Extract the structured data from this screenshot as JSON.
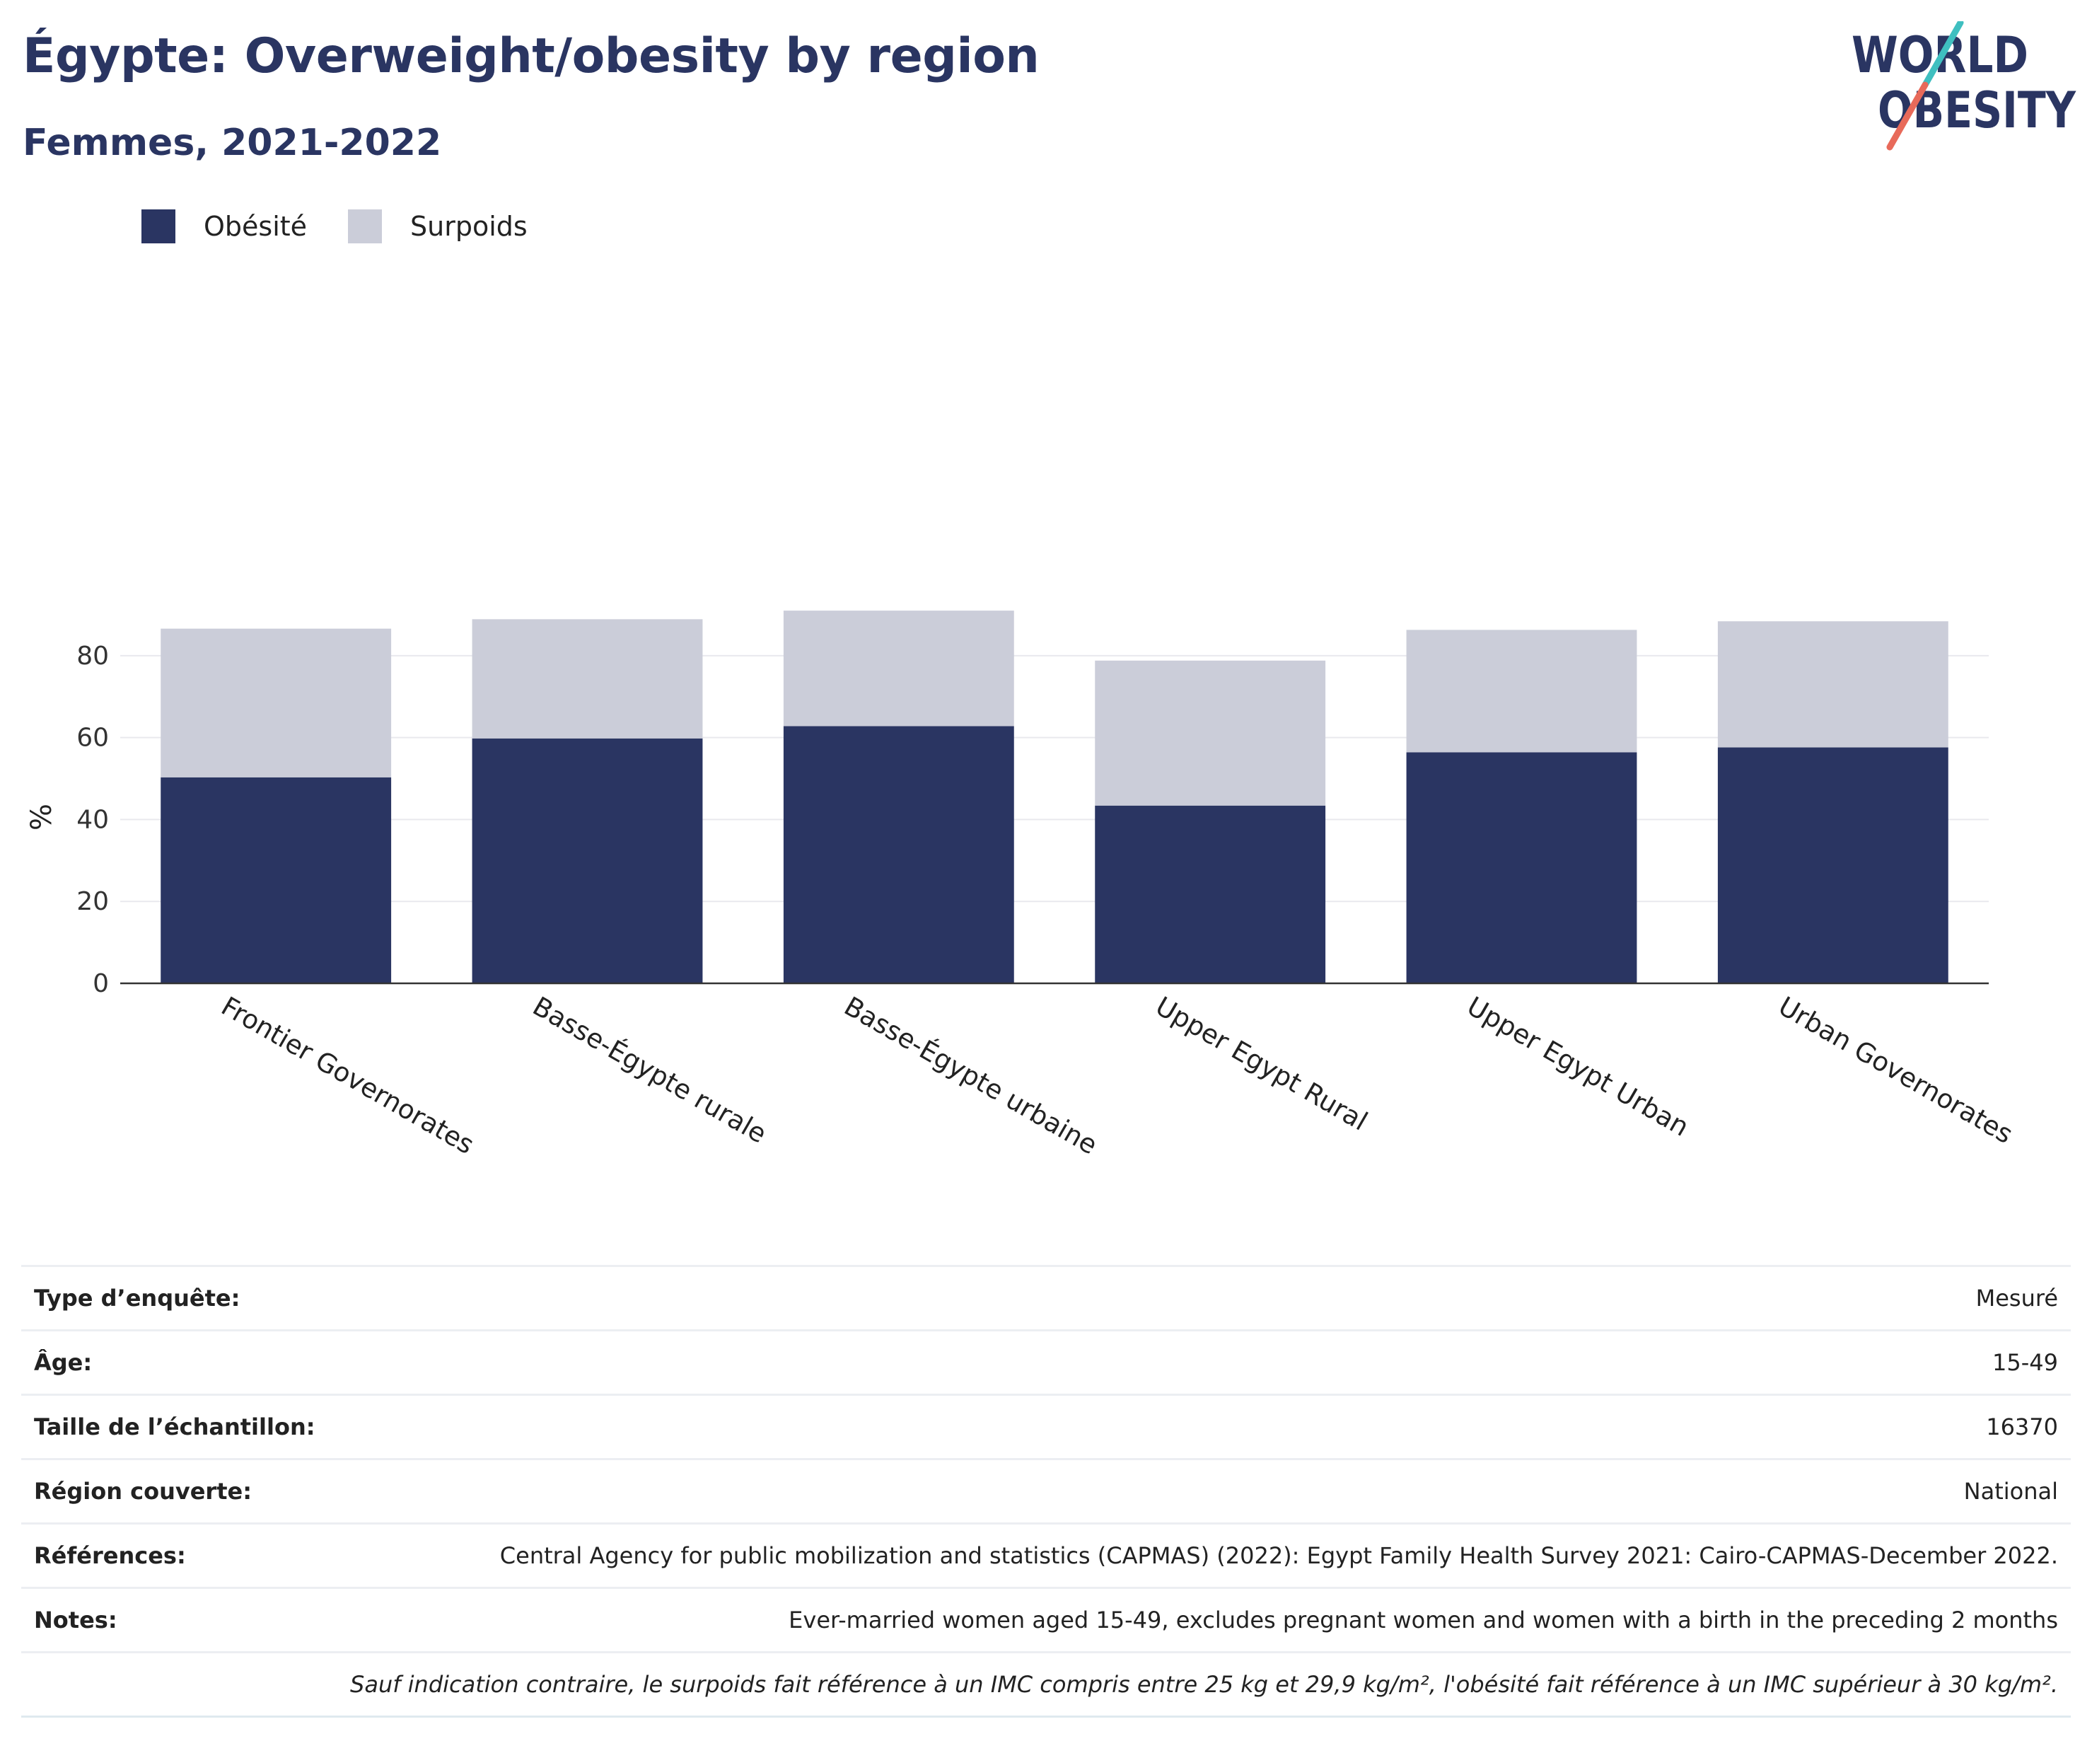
{
  "header": {
    "title": "Égypte: Overweight/obesity by region",
    "subtitle": "Femmes, 2021-2022"
  },
  "logo": {
    "line1": "WORLD",
    "line2": "OBESITY",
    "colors": {
      "text": "#2a3562",
      "slash_top": "#3fbfc0",
      "slash_bottom": "#e86a5a"
    }
  },
  "legend": {
    "items": [
      {
        "label": "Obésité",
        "color": "#2a3562"
      },
      {
        "label": "Surpoids",
        "color": "#cbcdd9"
      }
    ]
  },
  "chart_data": {
    "type": "bar",
    "stacked": true,
    "categories": [
      "Frontier Governorates",
      "Basse-Égypte rurale",
      "Basse-Égypte urbaine",
      "Upper Egypt Rural",
      "Upper Egypt Urban",
      "Urban Governorates"
    ],
    "series": [
      {
        "name": "Obésité",
        "color": "#2a3562",
        "values": [
          50.3,
          59.8,
          62.8,
          43.4,
          56.4,
          57.6
        ]
      },
      {
        "name": "Surpoids",
        "color": "#cbcdd9",
        "values": [
          36.3,
          29.1,
          28.2,
          35.4,
          29.9,
          30.8
        ]
      }
    ],
    "ylabel": "%",
    "ylim": [
      0,
      95
    ],
    "yticks": [
      0,
      20,
      40,
      60,
      80
    ],
    "grid": true,
    "legend_position": "top-left"
  },
  "info_table": {
    "rows": [
      {
        "key": "Type d’enquête:",
        "value": "Mesuré"
      },
      {
        "key": "Âge:",
        "value": "15-49"
      },
      {
        "key": "Taille de l’échantillon:",
        "value": "16370"
      },
      {
        "key": "Région couverte:",
        "value": "National"
      },
      {
        "key": "Références:",
        "value": "Central Agency for public mobilization and statistics (CAPMAS) (2022): Egypt Family Health Survey 2021: Cairo-CAPMAS-December 2022."
      },
      {
        "key": "Notes:",
        "value": "Ever-married women aged 15-49, excludes pregnant women and women with a birth in the preceding 2 months"
      }
    ],
    "footnote": "Sauf indication contraire, le surpoids fait référence à un IMC compris entre 25 kg et 29,9 kg/m², l'obésité fait référence à un IMC supérieur à 30 kg/m²."
  }
}
